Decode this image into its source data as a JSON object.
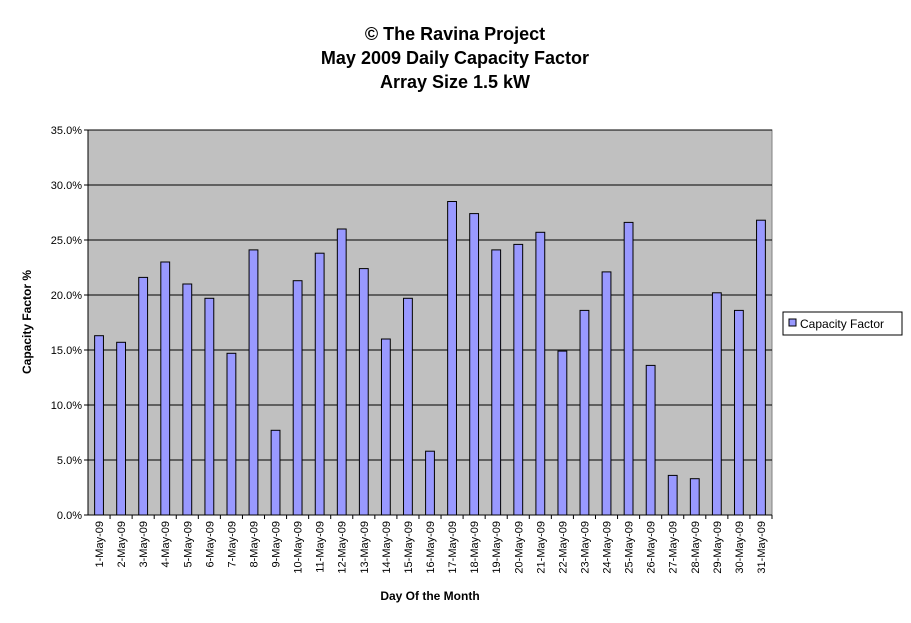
{
  "chart_data": {
    "type": "bar",
    "title_lines": [
      "© The Ravina Project",
      "May 2009 Daily Capacity Factor",
      "Array Size 1.5 kW"
    ],
    "xlabel": "Day Of the Month",
    "ylabel": "Capacity Factor %",
    "ylim": [
      0,
      0.35
    ],
    "yticks": [
      "0.0%",
      "5.0%",
      "10.0%",
      "15.0%",
      "20.0%",
      "25.0%",
      "30.0%",
      "35.0%"
    ],
    "grid": "horizontal",
    "legend_position": "right",
    "categories": [
      "1-May-09",
      "2-May-09",
      "3-May-09",
      "4-May-09",
      "5-May-09",
      "6-May-09",
      "7-May-09",
      "8-May-09",
      "9-May-09",
      "10-May-09",
      "11-May-09",
      "12-May-09",
      "13-May-09",
      "14-May-09",
      "15-May-09",
      "16-May-09",
      "17-May-09",
      "18-May-09",
      "19-May-09",
      "20-May-09",
      "21-May-09",
      "22-May-09",
      "23-May-09",
      "24-May-09",
      "25-May-09",
      "26-May-09",
      "27-May-09",
      "28-May-09",
      "29-May-09",
      "30-May-09",
      "31-May-09"
    ],
    "series": [
      {
        "name": "Capacity Factor",
        "color": "#9999ff",
        "values": [
          0.163,
          0.157,
          0.216,
          0.23,
          0.21,
          0.197,
          0.147,
          0.241,
          0.077,
          0.213,
          0.238,
          0.26,
          0.224,
          0.16,
          0.197,
          0.058,
          0.285,
          0.274,
          0.241,
          0.246,
          0.257,
          0.149,
          0.186,
          0.221,
          0.266,
          0.136,
          0.036,
          0.033,
          0.202,
          0.186,
          0.268
        ]
      }
    ],
    "colors": {
      "plot_background": "#c0c0c0",
      "bar_edge": "#000000"
    }
  }
}
